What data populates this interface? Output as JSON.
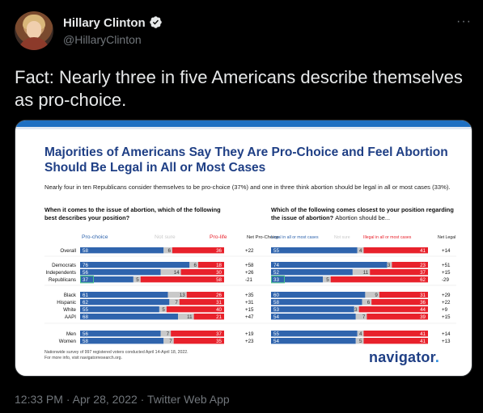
{
  "author": {
    "name": "Hillary Clinton",
    "handle": "@HillaryClinton",
    "verified": true,
    "avatar_icon": "profile-photo"
  },
  "more_label": "···",
  "tweet_text": "Fact: Nearly three in five Americans describe themselves as pro-choice.",
  "timestamp": {
    "time": "12:33 PM",
    "date": "Apr 28, 2022",
    "source": "Twitter Web App"
  },
  "colors": {
    "blue": "#2f64ad",
    "red": "#e8212b",
    "grey": "#c9c9c9",
    "title": "#1f3f85"
  },
  "infographic": {
    "title": "Majorities of Americans Say They Are Pro-Choice and Feel Abortion Should Be Legal in All or Most Cases",
    "subtitle": "Nearly four in ten Republicans consider themselves to be pro-choice (37%) and one in three think abortion should be legal in all or most cases (33%).",
    "left_question": "When it comes to the issue of abortion, which of the following best describes your position?",
    "right_question": "Which of the following comes closest to your position regarding the issue of abortion?",
    "right_question_light": "Abortion should be...",
    "footnote_1": "Nationwide survey of 997 registered voters conducted April 14-April 18, 2022.",
    "footnote_2": "For more info, visit navigatorresearch.org.",
    "brand": "navigator",
    "brand_dot": "."
  },
  "chart_data": [
    {
      "type": "bar",
      "stacked": true,
      "columns": [
        "Pro-choice",
        "Not sure",
        "Pro-life",
        "Net Pro-Choice"
      ],
      "categories": [
        "Overall",
        "Democrats",
        "Independents",
        "Republicans",
        "Black",
        "Hispanic",
        "White",
        "AAPI",
        "Men",
        "Women"
      ],
      "series": [
        {
          "name": "Pro-choice",
          "values": [
            58,
            76,
            56,
            37,
            61,
            62,
            55,
            68,
            56,
            58
          ]
        },
        {
          "name": "Not sure",
          "values": [
            6,
            6,
            14,
            5,
            13,
            7,
            5,
            11,
            7,
            7
          ]
        },
        {
          "name": "Pro-life",
          "values": [
            36,
            18,
            30,
            58,
            26,
            31,
            40,
            21,
            37,
            35
          ]
        }
      ],
      "net": [
        "+22",
        "+58",
        "+26",
        "-21",
        "+35",
        "+31",
        "+15",
        "+47",
        "+19",
        "+23"
      ]
    },
    {
      "type": "bar",
      "stacked": true,
      "columns": [
        "Legal in all or most cases",
        "Not sure",
        "Illegal in all or most cases",
        "Net Legal"
      ],
      "categories": [
        "Overall",
        "Democrats",
        "Independents",
        "Republicans",
        "Black",
        "Hispanic",
        "White",
        "AAPI",
        "Men",
        "Women"
      ],
      "series": [
        {
          "name": "Legal in all or most cases",
          "values": [
            55,
            74,
            52,
            33,
            60,
            58,
            53,
            54,
            55,
            54
          ]
        },
        {
          "name": "Not sure",
          "values": [
            4,
            3,
            11,
            5,
            9,
            6,
            3,
            7,
            4,
            5
          ]
        },
        {
          "name": "Illegal in all or most cases",
          "values": [
            41,
            23,
            37,
            62,
            31,
            36,
            44,
            39,
            41,
            41
          ]
        }
      ],
      "net": [
        "+14",
        "+51",
        "+15",
        "-29",
        "+29",
        "+22",
        "+9",
        "+15",
        "+14",
        "+13"
      ]
    }
  ]
}
